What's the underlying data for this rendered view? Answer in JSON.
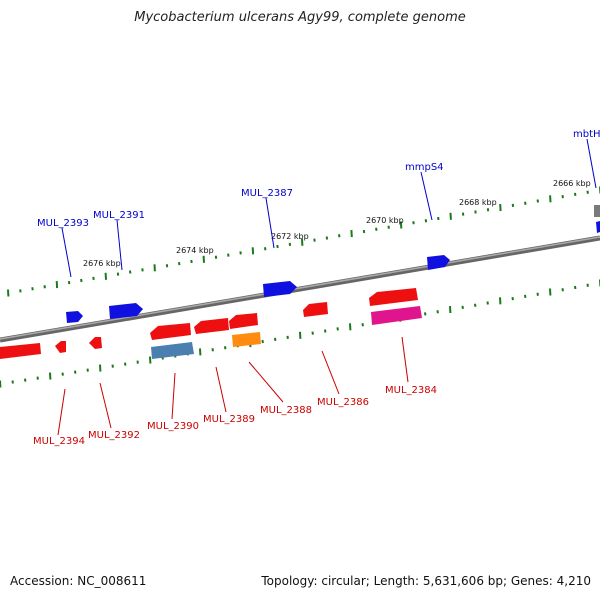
{
  "title": "Mycobacterium ulcerans Agy99, complete genome",
  "footer": {
    "accession_label": "Accession:",
    "accession": "NC_008611",
    "info": "Topology: circular; Length: 5,631,606 bp; Genes: 4,210"
  },
  "colors": {
    "backbone": "#777777",
    "tick": "#1a7a1a",
    "forward_label": "#0000cc",
    "reverse_label": "#cc0000",
    "blue_gene": "#1010e0",
    "red_gene": "#ee1010",
    "steelblue_gene": "#4a7fb0",
    "orange_gene": "#ff8c10",
    "magenta_gene": "#e0148c"
  },
  "scale_labels": [
    "2676 kbp",
    "2674 kbp",
    "2672 kbp",
    "2670 kbp",
    "2668 kbp",
    "2666 kbp"
  ],
  "forward_genes": [
    "MUL_2393",
    "MUL_2391",
    "MUL_2387",
    "mmpS4",
    "mbtH"
  ],
  "reverse_genes": [
    "MUL_2394",
    "MUL_2392",
    "MUL_2390",
    "MUL_2389",
    "MUL_2388",
    "MUL_2386",
    "MUL_2384"
  ]
}
